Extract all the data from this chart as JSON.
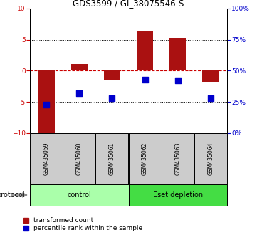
{
  "title": "GDS3599 / GI_38075546-S",
  "samples": [
    "GSM435059",
    "GSM435060",
    "GSM435061",
    "GSM435062",
    "GSM435063",
    "GSM435064"
  ],
  "transformed_count": [
    -10.2,
    1.1,
    -1.5,
    6.3,
    5.3,
    -1.8
  ],
  "percentile_rank": [
    23,
    32,
    28,
    43,
    42,
    28
  ],
  "groups": [
    {
      "label": "control",
      "indices": [
        0,
        1,
        2
      ]
    },
    {
      "label": "Eset depletion",
      "indices": [
        3,
        4,
        5
      ]
    }
  ],
  "ylim_left": [
    -10,
    10
  ],
  "ylim_right": [
    0,
    100
  ],
  "yticks_left": [
    -10,
    -5,
    0,
    5,
    10
  ],
  "yticks_right": [
    0,
    25,
    50,
    75,
    100
  ],
  "bar_color": "#AA1111",
  "dot_color": "#0000CC",
  "hline_color": "#CC0000",
  "left_tick_color": "#CC0000",
  "right_tick_color": "#0000CC",
  "bar_width": 0.5,
  "dot_size": 40,
  "legend_red_label": "transformed count",
  "legend_blue_label": "percentile rank within the sample",
  "protocol_label": "protocol",
  "sample_box_color": "#CCCCCC",
  "group_box_light": "#AAFFAA",
  "group_box_dark": "#44DD44"
}
